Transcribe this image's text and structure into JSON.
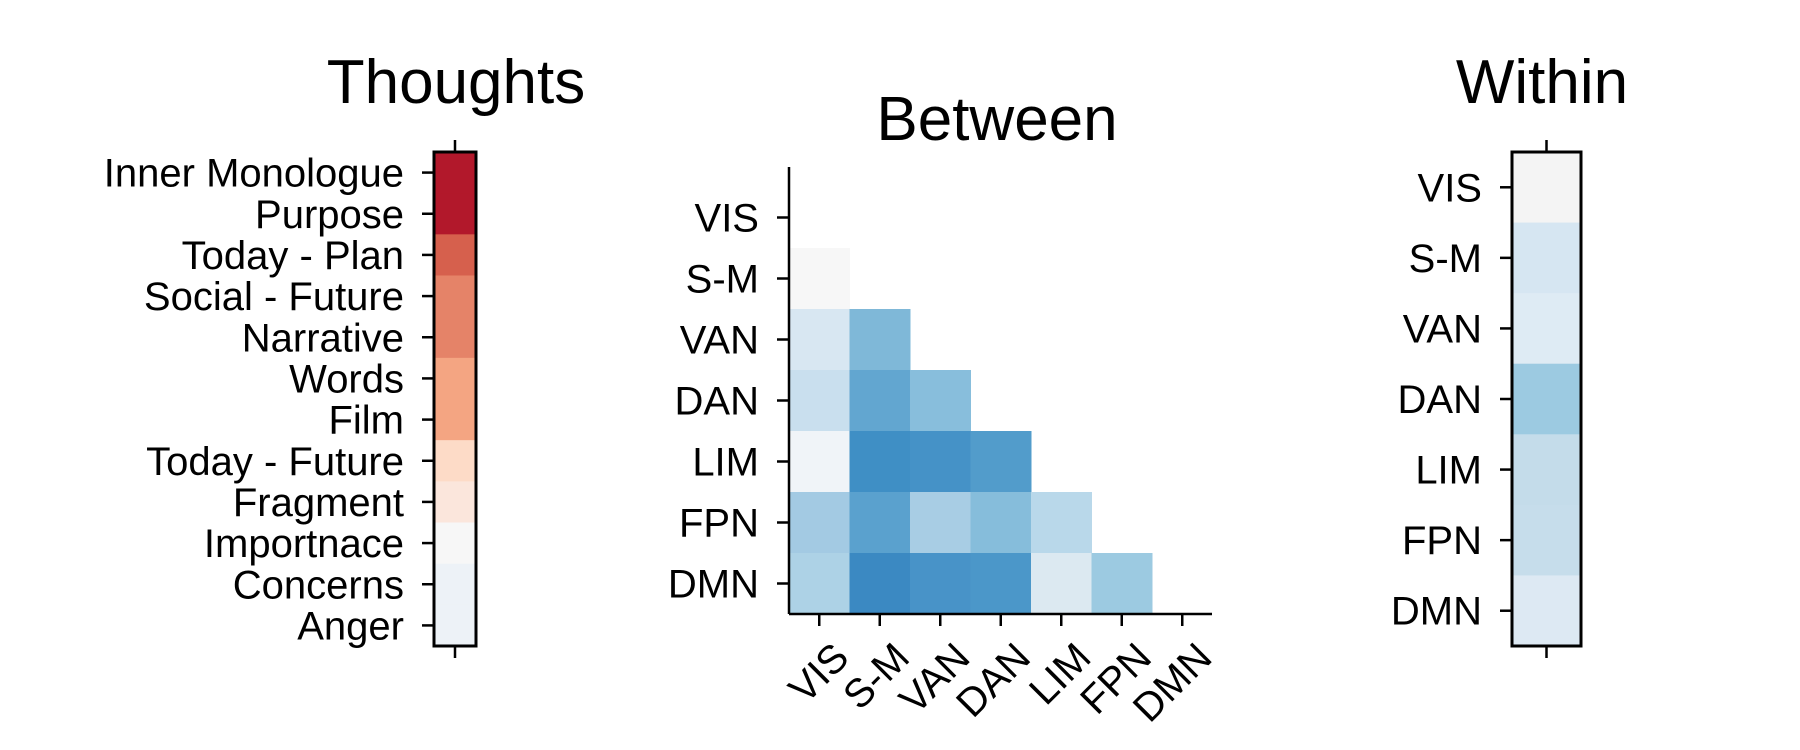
{
  "chart_data": [
    {
      "type": "heatmap",
      "title": "Thoughts",
      "rows": [
        "Inner Monologue",
        "Purpose",
        "Today - Plan",
        "Social - Future",
        "Narrative",
        "Words",
        "Film",
        "Today - Future",
        "Fragment",
        "Importnace",
        "Concerns",
        "Anger"
      ],
      "colors": [
        "#b2182b",
        "#b2182b",
        "#d6604d",
        "#e58368",
        "#e58368",
        "#f4a582",
        "#f4a582",
        "#fddbc7",
        "#fbe6dc",
        "#f7f7f7",
        "#edf2f7",
        "#edf2f7"
      ]
    },
    {
      "type": "heatmap",
      "title": "Between",
      "rows": [
        "VIS",
        "S-M",
        "VAN",
        "DAN",
        "LIM",
        "FPN",
        "DMN"
      ],
      "columns": [
        "VIS",
        "S-M",
        "VAN",
        "DAN",
        "LIM",
        "FPN",
        "DMN"
      ],
      "triangle": "lower",
      "cells": [
        {
          "row": 1,
          "col": 0,
          "color": "#f7f7f7"
        },
        {
          "row": 2,
          "col": 0,
          "color": "#d8e7f2"
        },
        {
          "row": 2,
          "col": 1,
          "color": "#7fb8d8"
        },
        {
          "row": 3,
          "col": 0,
          "color": "#c9dfee"
        },
        {
          "row": 3,
          "col": 1,
          "color": "#62a6d0"
        },
        {
          "row": 3,
          "col": 2,
          "color": "#88bedc"
        },
        {
          "row": 4,
          "col": 0,
          "color": "#f0f4f8"
        },
        {
          "row": 4,
          "col": 1,
          "color": "#3f8fc5"
        },
        {
          "row": 4,
          "col": 2,
          "color": "#4592c7"
        },
        {
          "row": 4,
          "col": 3,
          "color": "#529ccb"
        },
        {
          "row": 5,
          "col": 0,
          "color": "#a3cae3"
        },
        {
          "row": 5,
          "col": 1,
          "color": "#5aa1ce"
        },
        {
          "row": 5,
          "col": 2,
          "color": "#a8cde4"
        },
        {
          "row": 5,
          "col": 3,
          "color": "#86bddb"
        },
        {
          "row": 5,
          "col": 4,
          "color": "#b9d8ea"
        },
        {
          "row": 6,
          "col": 0,
          "color": "#add2e6"
        },
        {
          "row": 6,
          "col": 1,
          "color": "#3b89c2"
        },
        {
          "row": 6,
          "col": 2,
          "color": "#4893c8"
        },
        {
          "row": 6,
          "col": 3,
          "color": "#4b97c9"
        },
        {
          "row": 6,
          "col": 4,
          "color": "#dce9f1"
        },
        {
          "row": 6,
          "col": 5,
          "color": "#9ccae1"
        }
      ]
    },
    {
      "type": "heatmap",
      "title": "Within",
      "rows": [
        "VIS",
        "S-M",
        "VAN",
        "DAN",
        "LIM",
        "FPN",
        "DMN"
      ],
      "colors": [
        "#f4f4f4",
        "#d6e6f2",
        "#deebf4",
        "#9ccae1",
        "#c4dcea",
        "#c6ddeb",
        "#dde9f3"
      ]
    }
  ]
}
